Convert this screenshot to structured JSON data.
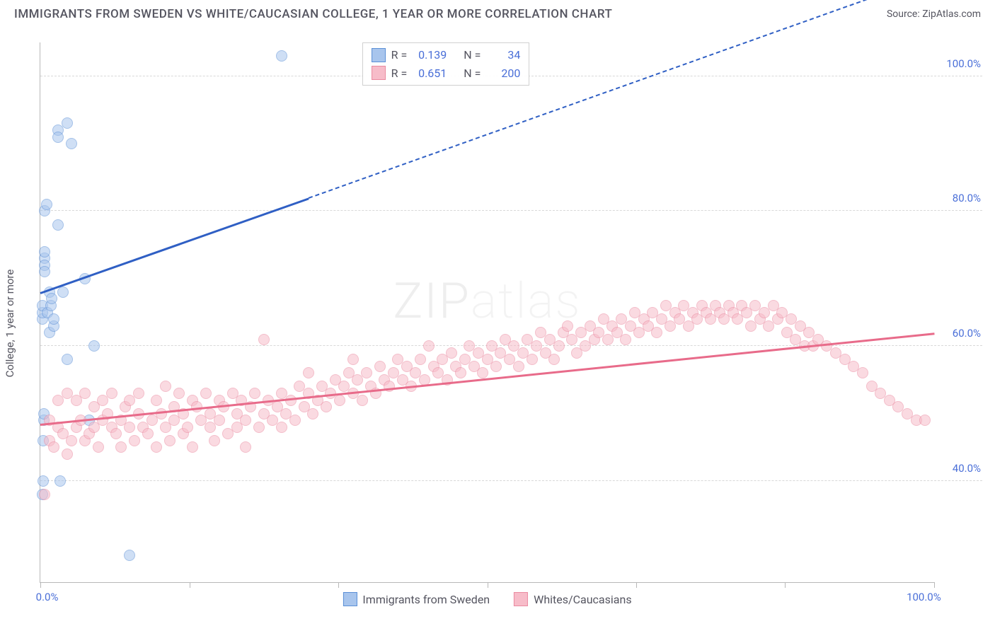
{
  "title": "IMMIGRANTS FROM SWEDEN VS WHITE/CAUCASIAN COLLEGE, 1 YEAR OR MORE CORRELATION CHART",
  "source_label": "Source:",
  "source_name": "ZipAtlas.com",
  "y_axis_label": "College, 1 year or more",
  "watermark_a": "ZIP",
  "watermark_b": "atlas",
  "chart": {
    "type": "scatter",
    "background_color": "#ffffff",
    "grid_color": "#d8d8d8",
    "axis_color": "#b8b8b8",
    "label_color": "#4a6fd8",
    "text_color": "#555560",
    "xlim": [
      0,
      100
    ],
    "ylim": [
      25,
      105
    ],
    "y_ticks": [
      40,
      60,
      80,
      100
    ],
    "y_tick_labels": [
      "40.0%",
      "60.0%",
      "80.0%",
      "100.0%"
    ],
    "x_ticks": [
      0,
      16.67,
      33.33,
      50,
      66.67,
      83.33,
      100
    ],
    "x_tick_labels_shown": {
      "0": "0.0%",
      "100": "100.0%"
    },
    "marker_radius": 8,
    "marker_opacity": 0.55,
    "series": [
      {
        "name": "Immigrants from Sweden",
        "key": "sweden",
        "color_fill": "#a8c5ed",
        "color_stroke": "#5b8fd6",
        "trend_color": "#2f5fc4",
        "R": "0.139",
        "N": "34",
        "trend": {
          "x1": 0,
          "y1": 68,
          "x2": 30,
          "y2": 82,
          "x2_dash": 100,
          "y2_dash": 115
        },
        "points": [
          [
            0.2,
            64
          ],
          [
            0.2,
            65
          ],
          [
            0.2,
            66
          ],
          [
            0.5,
            73
          ],
          [
            0.5,
            74
          ],
          [
            0.5,
            72
          ],
          [
            0.5,
            71
          ],
          [
            0.5,
            80
          ],
          [
            0.7,
            81
          ],
          [
            0.8,
            65
          ],
          [
            1.0,
            68
          ],
          [
            1.0,
            62
          ],
          [
            1.2,
            66
          ],
          [
            1.3,
            67
          ],
          [
            1.5,
            63
          ],
          [
            1.5,
            64
          ],
          [
            2.0,
            78
          ],
          [
            2.0,
            92
          ],
          [
            2.0,
            91
          ],
          [
            2.5,
            68
          ],
          [
            3.0,
            93
          ],
          [
            3.0,
            58
          ],
          [
            3.5,
            90
          ],
          [
            5.0,
            70
          ],
          [
            5.5,
            49
          ],
          [
            6.0,
            60
          ],
          [
            0.2,
            38
          ],
          [
            0.3,
            40
          ],
          [
            0.3,
            46
          ],
          [
            0.4,
            49
          ],
          [
            0.4,
            50
          ],
          [
            2.2,
            40
          ],
          [
            10.0,
            29
          ],
          [
            27.0,
            103
          ]
        ]
      },
      {
        "name": "Whites/Caucasians",
        "key": "whites",
        "color_fill": "#f7bcc9",
        "color_stroke": "#ea8aa0",
        "trend_color": "#e86b8a",
        "R": "0.651",
        "N": "200",
        "trend": {
          "x1": 0,
          "y1": 48.5,
          "x2": 100,
          "y2": 62
        },
        "points": [
          [
            0.5,
            38
          ],
          [
            1,
            49
          ],
          [
            1,
            46
          ],
          [
            1.5,
            45
          ],
          [
            2,
            52
          ],
          [
            2,
            48
          ],
          [
            2.5,
            47
          ],
          [
            3,
            44
          ],
          [
            3,
            53
          ],
          [
            3.5,
            46
          ],
          [
            4,
            52
          ],
          [
            4,
            48
          ],
          [
            4.5,
            49
          ],
          [
            5,
            53
          ],
          [
            5,
            46
          ],
          [
            5.5,
            47
          ],
          [
            6,
            51
          ],
          [
            6,
            48
          ],
          [
            6.5,
            45
          ],
          [
            7,
            52
          ],
          [
            7,
            49
          ],
          [
            7.5,
            50
          ],
          [
            8,
            48
          ],
          [
            8,
            53
          ],
          [
            8.5,
            47
          ],
          [
            9,
            49
          ],
          [
            9,
            45
          ],
          [
            9.5,
            51
          ],
          [
            10,
            48
          ],
          [
            10,
            52
          ],
          [
            10.5,
            46
          ],
          [
            11,
            50
          ],
          [
            11,
            53
          ],
          [
            11.5,
            48
          ],
          [
            12,
            47
          ],
          [
            12.5,
            49
          ],
          [
            13,
            45
          ],
          [
            13,
            52
          ],
          [
            13.5,
            50
          ],
          [
            14,
            48
          ],
          [
            14,
            54
          ],
          [
            14.5,
            46
          ],
          [
            15,
            51
          ],
          [
            15,
            49
          ],
          [
            15.5,
            53
          ],
          [
            16,
            47
          ],
          [
            16,
            50
          ],
          [
            16.5,
            48
          ],
          [
            17,
            52
          ],
          [
            17,
            45
          ],
          [
            17.5,
            51
          ],
          [
            18,
            49
          ],
          [
            18.5,
            53
          ],
          [
            19,
            48
          ],
          [
            19,
            50
          ],
          [
            19.5,
            46
          ],
          [
            20,
            52
          ],
          [
            20,
            49
          ],
          [
            20.5,
            51
          ],
          [
            21,
            47
          ],
          [
            21.5,
            53
          ],
          [
            22,
            50
          ],
          [
            22,
            48
          ],
          [
            22.5,
            52
          ],
          [
            23,
            49
          ],
          [
            23,
            45
          ],
          [
            23.5,
            51
          ],
          [
            24,
            53
          ],
          [
            24.5,
            48
          ],
          [
            25,
            50
          ],
          [
            25,
            61
          ],
          [
            25.5,
            52
          ],
          [
            26,
            49
          ],
          [
            26.5,
            51
          ],
          [
            27,
            53
          ],
          [
            27,
            48
          ],
          [
            27.5,
            50
          ],
          [
            28,
            52
          ],
          [
            28.5,
            49
          ],
          [
            29,
            54
          ],
          [
            29.5,
            51
          ],
          [
            30,
            53
          ],
          [
            30,
            56
          ],
          [
            30.5,
            50
          ],
          [
            31,
            52
          ],
          [
            31.5,
            54
          ],
          [
            32,
            51
          ],
          [
            32.5,
            53
          ],
          [
            33,
            55
          ],
          [
            33.5,
            52
          ],
          [
            34,
            54
          ],
          [
            34.5,
            56
          ],
          [
            35,
            53
          ],
          [
            35,
            58
          ],
          [
            35.5,
            55
          ],
          [
            36,
            52
          ],
          [
            36.5,
            56
          ],
          [
            37,
            54
          ],
          [
            37.5,
            53
          ],
          [
            38,
            57
          ],
          [
            38.5,
            55
          ],
          [
            39,
            54
          ],
          [
            39.5,
            56
          ],
          [
            40,
            58
          ],
          [
            40.5,
            55
          ],
          [
            41,
            57
          ],
          [
            41.5,
            54
          ],
          [
            42,
            56
          ],
          [
            42.5,
            58
          ],
          [
            43,
            55
          ],
          [
            43.5,
            60
          ],
          [
            44,
            57
          ],
          [
            44.5,
            56
          ],
          [
            45,
            58
          ],
          [
            45.5,
            55
          ],
          [
            46,
            59
          ],
          [
            46.5,
            57
          ],
          [
            47,
            56
          ],
          [
            47.5,
            58
          ],
          [
            48,
            60
          ],
          [
            48.5,
            57
          ],
          [
            49,
            59
          ],
          [
            49.5,
            56
          ],
          [
            50,
            58
          ],
          [
            50.5,
            60
          ],
          [
            51,
            57
          ],
          [
            51.5,
            59
          ],
          [
            52,
            61
          ],
          [
            52.5,
            58
          ],
          [
            53,
            60
          ],
          [
            53.5,
            57
          ],
          [
            54,
            59
          ],
          [
            54.5,
            61
          ],
          [
            55,
            58
          ],
          [
            55.5,
            60
          ],
          [
            56,
            62
          ],
          [
            56.5,
            59
          ],
          [
            57,
            61
          ],
          [
            57.5,
            58
          ],
          [
            58,
            60
          ],
          [
            58.5,
            62
          ],
          [
            59,
            63
          ],
          [
            59.5,
            61
          ],
          [
            60,
            59
          ],
          [
            60.5,
            62
          ],
          [
            61,
            60
          ],
          [
            61.5,
            63
          ],
          [
            62,
            61
          ],
          [
            62.5,
            62
          ],
          [
            63,
            64
          ],
          [
            63.5,
            61
          ],
          [
            64,
            63
          ],
          [
            64.5,
            62
          ],
          [
            65,
            64
          ],
          [
            65.5,
            61
          ],
          [
            66,
            63
          ],
          [
            66.5,
            65
          ],
          [
            67,
            62
          ],
          [
            67.5,
            64
          ],
          [
            68,
            63
          ],
          [
            68.5,
            65
          ],
          [
            69,
            62
          ],
          [
            69.5,
            64
          ],
          [
            70,
            66
          ],
          [
            70.5,
            63
          ],
          [
            71,
            65
          ],
          [
            71.5,
            64
          ],
          [
            72,
            66
          ],
          [
            72.5,
            63
          ],
          [
            73,
            65
          ],
          [
            73.5,
            64
          ],
          [
            74,
            66
          ],
          [
            74.5,
            65
          ],
          [
            75,
            64
          ],
          [
            75.5,
            66
          ],
          [
            76,
            65
          ],
          [
            76.5,
            64
          ],
          [
            77,
            66
          ],
          [
            77.5,
            65
          ],
          [
            78,
            64
          ],
          [
            78.5,
            66
          ],
          [
            79,
            65
          ],
          [
            79.5,
            63
          ],
          [
            80,
            66
          ],
          [
            80.5,
            64
          ],
          [
            81,
            65
          ],
          [
            81.5,
            63
          ],
          [
            82,
            66
          ],
          [
            82.5,
            64
          ],
          [
            83,
            65
          ],
          [
            83.5,
            62
          ],
          [
            84,
            64
          ],
          [
            84.5,
            61
          ],
          [
            85,
            63
          ],
          [
            85.5,
            60
          ],
          [
            86,
            62
          ],
          [
            86.5,
            60
          ],
          [
            87,
            61
          ],
          [
            88,
            60
          ],
          [
            89,
            59
          ],
          [
            90,
            58
          ],
          [
            91,
            57
          ],
          [
            92,
            56
          ],
          [
            93,
            54
          ],
          [
            94,
            53
          ],
          [
            95,
            52
          ],
          [
            96,
            51
          ],
          [
            97,
            50
          ],
          [
            98,
            49
          ],
          [
            99,
            49
          ]
        ]
      }
    ]
  },
  "legend_labels": {
    "R": "R =",
    "N": "N ="
  },
  "bottom_legend": {
    "sweden": "Immigrants from Sweden",
    "whites": "Whites/Caucasians"
  }
}
